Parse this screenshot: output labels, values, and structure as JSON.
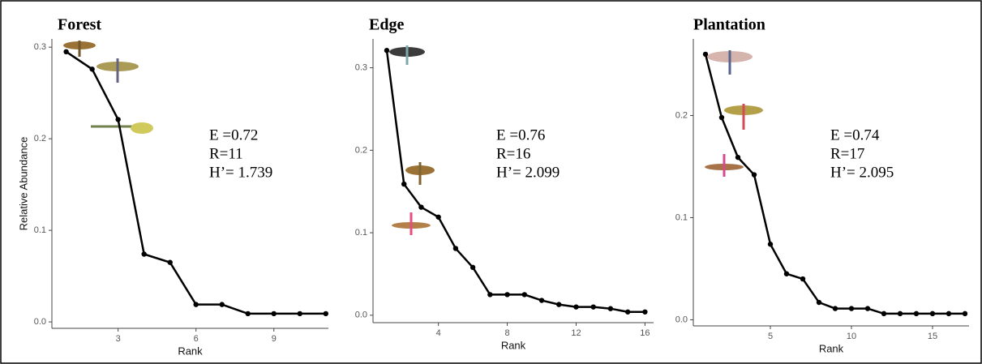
{
  "chart_data": [
    {
      "type": "line",
      "title": "Forest",
      "annotations": [
        "E =0.72",
        "R=11",
        "H’= 1.739"
      ],
      "x_label": "Rank",
      "y_label": "Relative Abundance",
      "color": "#000000",
      "x": [
        1,
        2,
        3,
        4,
        5,
        6,
        7,
        8,
        9,
        10,
        11
      ],
      "values": [
        0.295,
        0.276,
        0.221,
        0.074,
        0.065,
        0.019,
        0.019,
        0.009,
        0.009,
        0.009,
        0.009
      ],
      "xlim": [
        0.45,
        11.1
      ],
      "ylim": [
        -0.007,
        0.309
      ],
      "xticks": [
        3,
        6,
        9
      ],
      "yticks": [
        {
          "value": 0,
          "label": "0.0"
        },
        0.1,
        0.2,
        0.3
      ]
    },
    {
      "type": "line",
      "title": "Edge",
      "annotations": [
        "E =0.76",
        "R=16",
        "H’= 2.099"
      ],
      "x_label": "Rank",
      "color": "#000000",
      "x": [
        1,
        2,
        3,
        4,
        5,
        6,
        7,
        8,
        9,
        10,
        11,
        12,
        13,
        14,
        15,
        16
      ],
      "values": [
        0.321,
        0.159,
        0.131,
        0.119,
        0.081,
        0.058,
        0.025,
        0.025,
        0.025,
        0.018,
        0.013,
        0.01,
        0.01,
        0.008,
        0.004,
        0.004
      ],
      "xlim": [
        0.2,
        16.5
      ],
      "ylim": [
        -0.009,
        0.335
      ],
      "xticks": [
        4,
        8,
        12,
        16
      ],
      "yticks": [
        {
          "value": 0,
          "label": "0.0"
        },
        0.1,
        0.2,
        0.3
      ]
    },
    {
      "type": "line",
      "title": "Plantation",
      "annotations": [
        "E =0.74",
        "R=17",
        "H’= 2.095"
      ],
      "x_label": "Rank",
      "color": "#000000",
      "x": [
        1,
        2,
        3,
        4,
        5,
        6,
        7,
        8,
        9,
        10,
        11,
        12,
        13,
        14,
        15,
        16,
        17
      ],
      "values": [
        0.26,
        0.198,
        0.159,
        0.142,
        0.074,
        0.045,
        0.04,
        0.017,
        0.011,
        0.011,
        0.011,
        0.006,
        0.006,
        0.006,
        0.006,
        0.006,
        0.006
      ],
      "xlim": [
        0.25,
        17.25
      ],
      "ylim": [
        -0.006,
        0.275
      ],
      "xticks": [
        5,
        10,
        15
      ],
      "yticks": [
        {
          "value": 0,
          "label": "0.0"
        },
        0.1,
        0.2
      ]
    }
  ]
}
